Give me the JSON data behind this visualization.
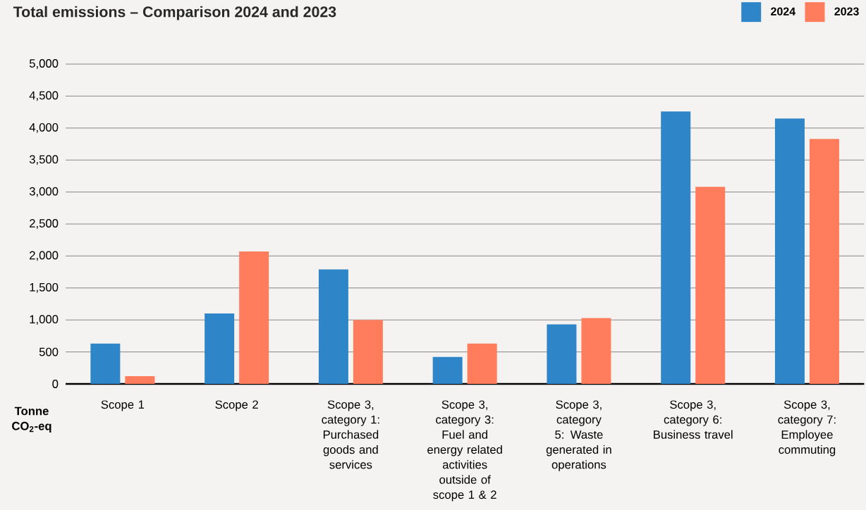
{
  "chart_data": {
    "type": "bar",
    "title": "Total emissions – Comparison 2024 and 2023",
    "ylabel": "Tonne CO$_{2}$-eq",
    "categories": [
      "Scope 1",
      "Scope 2",
      "Scope 3, category 1: Purchased goods and services",
      "Scope 3, category 3: Fuel and energy related activities outside of scope 1 & 2",
      "Scope 3, category 5: Waste generated in operations",
      "Scope 3, category 6: Business travel",
      "Scope 3, category 7: Employee commuting"
    ],
    "series": [
      {
        "name": "2024",
        "color": "#2e86c8",
        "values": [
          630,
          1100,
          1790,
          420,
          930,
          4260,
          4150
        ]
      },
      {
        "name": "2023",
        "color": "#ff7c5c",
        "values": [
          120,
          2070,
          1000,
          630,
          1030,
          3080,
          3830
        ]
      }
    ],
    "ylim": [
      0,
      5000
    ],
    "yticks": [
      {
        "value": 0,
        "label": "0"
      },
      {
        "value": 500,
        "label": "500"
      },
      {
        "value": 1000,
        "label": "1,000"
      },
      {
        "value": 1500,
        "label": "1,500"
      },
      {
        "value": 2000,
        "label": "2,000"
      },
      {
        "value": 2500,
        "label": "2,500"
      },
      {
        "value": 3000,
        "label": "3,000"
      },
      {
        "value": 3500,
        "label": "3,500"
      },
      {
        "value": 4000,
        "label": "4,000"
      },
      {
        "value": 4500,
        "label": "4,500"
      },
      {
        "value": 5000,
        "label": "5,000"
      }
    ],
    "grid": "y",
    "legend": "top right"
  }
}
